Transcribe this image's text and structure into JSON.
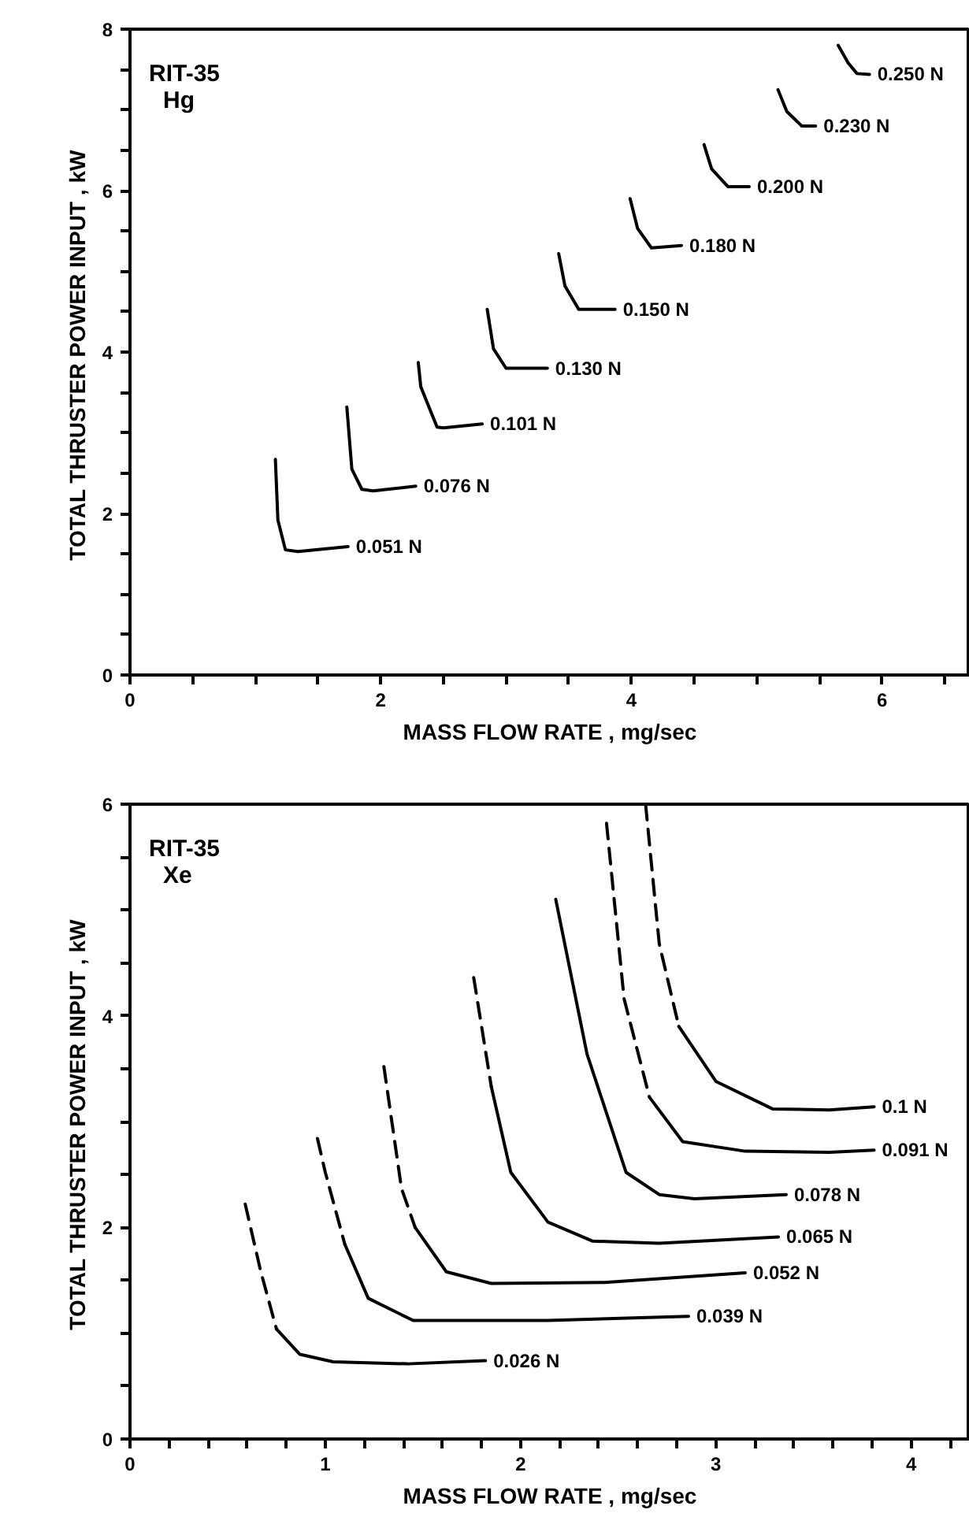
{
  "chart_data": [
    {
      "type": "line",
      "title": "RIT-35\nHg",
      "xlabel": "MASS FLOW RATE , mg/sec",
      "ylabel": "TOTAL  THRUSTER POWER INPUT , kW",
      "xlim": [
        0,
        6.7
      ],
      "ylim": [
        0,
        8
      ],
      "xticks": [
        0,
        {
          "value": 0.5,
          "label": null
        },
        {
          "value": 1,
          "label": null
        },
        {
          "value": 1.5,
          "label": null
        },
        2,
        {
          "value": 2.5,
          "label": null
        },
        {
          "value": 3,
          "label": null
        },
        {
          "value": 3.5,
          "label": null
        },
        4,
        {
          "value": 4.5,
          "label": null
        },
        {
          "value": 5,
          "label": null
        },
        {
          "value": 5.5,
          "label": null
        },
        6,
        {
          "value": 6.5,
          "label": null
        }
      ],
      "yticks": [
        0,
        {
          "value": 0.5,
          "label": null
        },
        {
          "value": 1,
          "label": null
        },
        {
          "value": 1.5,
          "label": null
        },
        2,
        {
          "value": 2.5,
          "label": null
        },
        {
          "value": 3,
          "label": null
        },
        {
          "value": 3.5,
          "label": null
        },
        4,
        {
          "value": 4.5,
          "label": null
        },
        {
          "value": 5,
          "label": null
        },
        {
          "value": 5.5,
          "label": null
        },
        6,
        {
          "value": 6.5,
          "label": null
        },
        {
          "value": 7,
          "label": null
        },
        {
          "value": 7.5,
          "label": null
        },
        8
      ],
      "grid": false,
      "line_style": "solid",
      "series": [
        {
          "name": "0.051 N",
          "color": "#000000",
          "x": [
            1.16,
            1.18,
            1.24,
            1.34,
            1.74
          ],
          "values": [
            2.67,
            1.92,
            1.55,
            1.53,
            1.59
          ]
        },
        {
          "name": "0.076 N",
          "color": "#000000",
          "x": [
            1.73,
            1.77,
            1.85,
            1.94,
            2.28
          ],
          "values": [
            3.32,
            2.55,
            2.3,
            2.28,
            2.34
          ]
        },
        {
          "name": "0.101 N",
          "color": "#000000",
          "x": [
            2.3,
            2.32,
            2.45,
            2.5,
            2.81
          ],
          "values": [
            3.87,
            3.57,
            3.07,
            3.06,
            3.11
          ]
        },
        {
          "name": "0.130 N",
          "color": "#000000",
          "x": [
            2.85,
            2.9,
            3.0,
            3.33
          ],
          "values": [
            4.53,
            4.04,
            3.8,
            3.8
          ]
        },
        {
          "name": "0.150 N",
          "color": "#000000",
          "x": [
            3.42,
            3.47,
            3.58,
            3.87
          ],
          "values": [
            5.22,
            4.82,
            4.53,
            4.53
          ]
        },
        {
          "name": "0.180 N",
          "color": "#000000",
          "x": [
            3.99,
            4.05,
            4.16,
            4.4
          ],
          "values": [
            5.9,
            5.53,
            5.29,
            5.32
          ]
        },
        {
          "name": "0.200 N",
          "color": "#000000",
          "x": [
            4.58,
            4.64,
            4.77,
            4.94
          ],
          "values": [
            6.57,
            6.27,
            6.05,
            6.05
          ]
        },
        {
          "name": "0.230 N",
          "color": "#000000",
          "x": [
            5.17,
            5.24,
            5.36,
            5.47
          ],
          "values": [
            7.25,
            6.98,
            6.8,
            6.8
          ]
        },
        {
          "name": "0.250 N",
          "color": "#000000",
          "x": [
            5.65,
            5.73,
            5.8,
            5.9
          ],
          "values": [
            7.8,
            7.58,
            7.45,
            7.44
          ]
        }
      ]
    },
    {
      "type": "line",
      "title": "RIT-35\nXe",
      "xlabel": "MASS FLOW RATE , mg/sec",
      "ylabel": "TOTAL  THRUSTER POWER INPUT , kW",
      "xlim": [
        0,
        4.3
      ],
      "ylim": [
        0,
        6
      ],
      "xticks": [
        0,
        {
          "value": 0.2,
          "label": null
        },
        {
          "value": 0.4,
          "label": null
        },
        {
          "value": 0.6,
          "label": null
        },
        {
          "value": 0.8,
          "label": null
        },
        1,
        {
          "value": 1.2,
          "label": null
        },
        {
          "value": 1.4,
          "label": null
        },
        {
          "value": 1.6,
          "label": null
        },
        {
          "value": 1.8,
          "label": null
        },
        2,
        {
          "value": 2.2,
          "label": null
        },
        {
          "value": 2.4,
          "label": null
        },
        {
          "value": 2.6,
          "label": null
        },
        {
          "value": 2.8,
          "label": null
        },
        3,
        {
          "value": 3.2,
          "label": null
        },
        {
          "value": 3.4,
          "label": null
        },
        {
          "value": 3.6,
          "label": null
        },
        {
          "value": 3.8,
          "label": null
        },
        4,
        {
          "value": 4.2,
          "label": null
        }
      ],
      "yticks": [
        0,
        {
          "value": 0.5,
          "label": null
        },
        {
          "value": 1,
          "label": null
        },
        {
          "value": 1.5,
          "label": null
        },
        2,
        {
          "value": 2.5,
          "label": null
        },
        {
          "value": 3,
          "label": null
        },
        {
          "value": 3.5,
          "label": null
        },
        4,
        {
          "value": 4.5,
          "label": null
        },
        {
          "value": 5,
          "label": null
        },
        {
          "value": 5.5,
          "label": null
        },
        6
      ],
      "grid": false,
      "line_style": "solid",
      "series": [
        {
          "color": "#000000",
          "line_style": "dashed",
          "x": [
            0.59,
            0.67,
            0.75
          ],
          "values": [
            2.22,
            1.58,
            1.04
          ]
        },
        {
          "name": "0.026 N",
          "color": "#000000",
          "x": [
            0.75,
            0.87,
            1.04,
            1.42,
            1.82
          ],
          "values": [
            1.04,
            0.8,
            0.73,
            0.71,
            0.74
          ]
        },
        {
          "color": "#000000",
          "line_style": "dashed",
          "x": [
            0.96,
            1.0,
            1.1
          ],
          "values": [
            2.84,
            2.52,
            1.84
          ]
        },
        {
          "name": "0.039 N",
          "color": "#000000",
          "x": [
            1.1,
            1.22,
            1.45,
            2.14,
            2.86
          ],
          "values": [
            1.84,
            1.33,
            1.12,
            1.12,
            1.16
          ]
        },
        {
          "color": "#000000",
          "line_style": "dashed",
          "x": [
            1.3,
            1.39,
            1.46
          ],
          "values": [
            3.52,
            2.37,
            2.0
          ]
        },
        {
          "name": "0.052 N",
          "color": "#000000",
          "x": [
            1.46,
            1.62,
            1.85,
            2.43,
            3.15
          ],
          "values": [
            2.0,
            1.58,
            1.47,
            1.48,
            1.57
          ]
        },
        {
          "color": "#000000",
          "line_style": "dashed",
          "x": [
            1.76,
            1.85
          ],
          "values": [
            4.36,
            3.33
          ]
        },
        {
          "name": "0.065 N",
          "color": "#000000",
          "x": [
            1.85,
            1.95,
            2.14,
            2.37,
            2.71,
            3.32
          ],
          "values": [
            3.33,
            2.52,
            2.05,
            1.87,
            1.85,
            1.91
          ]
        },
        {
          "name": "0.078 N",
          "color": "#000000",
          "x": [
            2.18,
            2.34,
            2.54,
            2.71,
            2.89,
            3.36
          ],
          "values": [
            5.1,
            3.64,
            2.52,
            2.31,
            2.27,
            2.31
          ]
        },
        {
          "color": "#000000",
          "line_style": "dashed",
          "x": [
            2.44,
            2.53,
            2.66
          ],
          "values": [
            5.82,
            4.16,
            3.23
          ]
        },
        {
          "name": "0.091 N",
          "color": "#000000",
          "x": [
            2.66,
            2.83,
            3.15,
            3.58,
            3.81
          ],
          "values": [
            3.23,
            2.81,
            2.72,
            2.71,
            2.73
          ]
        },
        {
          "color": "#000000",
          "line_style": "dashed",
          "x": [
            2.64,
            2.71,
            2.81
          ],
          "values": [
            6.0,
            4.68,
            3.9
          ]
        },
        {
          "name": "0.1 N",
          "color": "#000000",
          "x": [
            2.81,
            3.0,
            3.29,
            3.58,
            3.81
          ],
          "values": [
            3.9,
            3.38,
            3.12,
            3.11,
            3.14
          ]
        }
      ]
    }
  ]
}
